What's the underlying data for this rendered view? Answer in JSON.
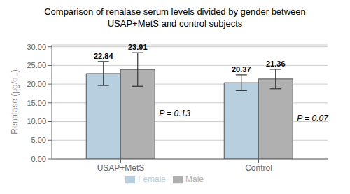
{
  "chart_data": {
    "type": "bar",
    "title": "Comparison of renalase serum levels divided by gender between\nUSAP+MetS and control subjects",
    "ylabel": "Renalase (µg/dL)",
    "categories": [
      "USAP+MetS",
      "Control"
    ],
    "series": [
      {
        "name": "Female",
        "color": "#b8cfe0",
        "values": [
          22.84,
          20.37
        ],
        "errors": [
          3.2,
          2.1
        ]
      },
      {
        "name": "Male",
        "color": "#b0b0b0",
        "values": [
          23.91,
          21.36
        ],
        "errors": [
          4.5,
          2.6
        ]
      }
    ],
    "annotations": [
      "P = 0.13",
      "P = 0.07"
    ],
    "ylim": [
      0,
      30.5
    ],
    "yticks": [
      {
        "value": 0,
        "label": "0.00"
      },
      {
        "value": 5,
        "label": "5.00"
      },
      {
        "value": 10,
        "label": "10.00"
      },
      {
        "value": 15,
        "label": "15.00"
      },
      {
        "value": 20,
        "label": "20.00"
      },
      {
        "value": 25,
        "label": "25.00"
      },
      {
        "value": 30,
        "label": "30.00"
      }
    ],
    "grid": true,
    "legend": "bottom",
    "data_labels": true
  }
}
